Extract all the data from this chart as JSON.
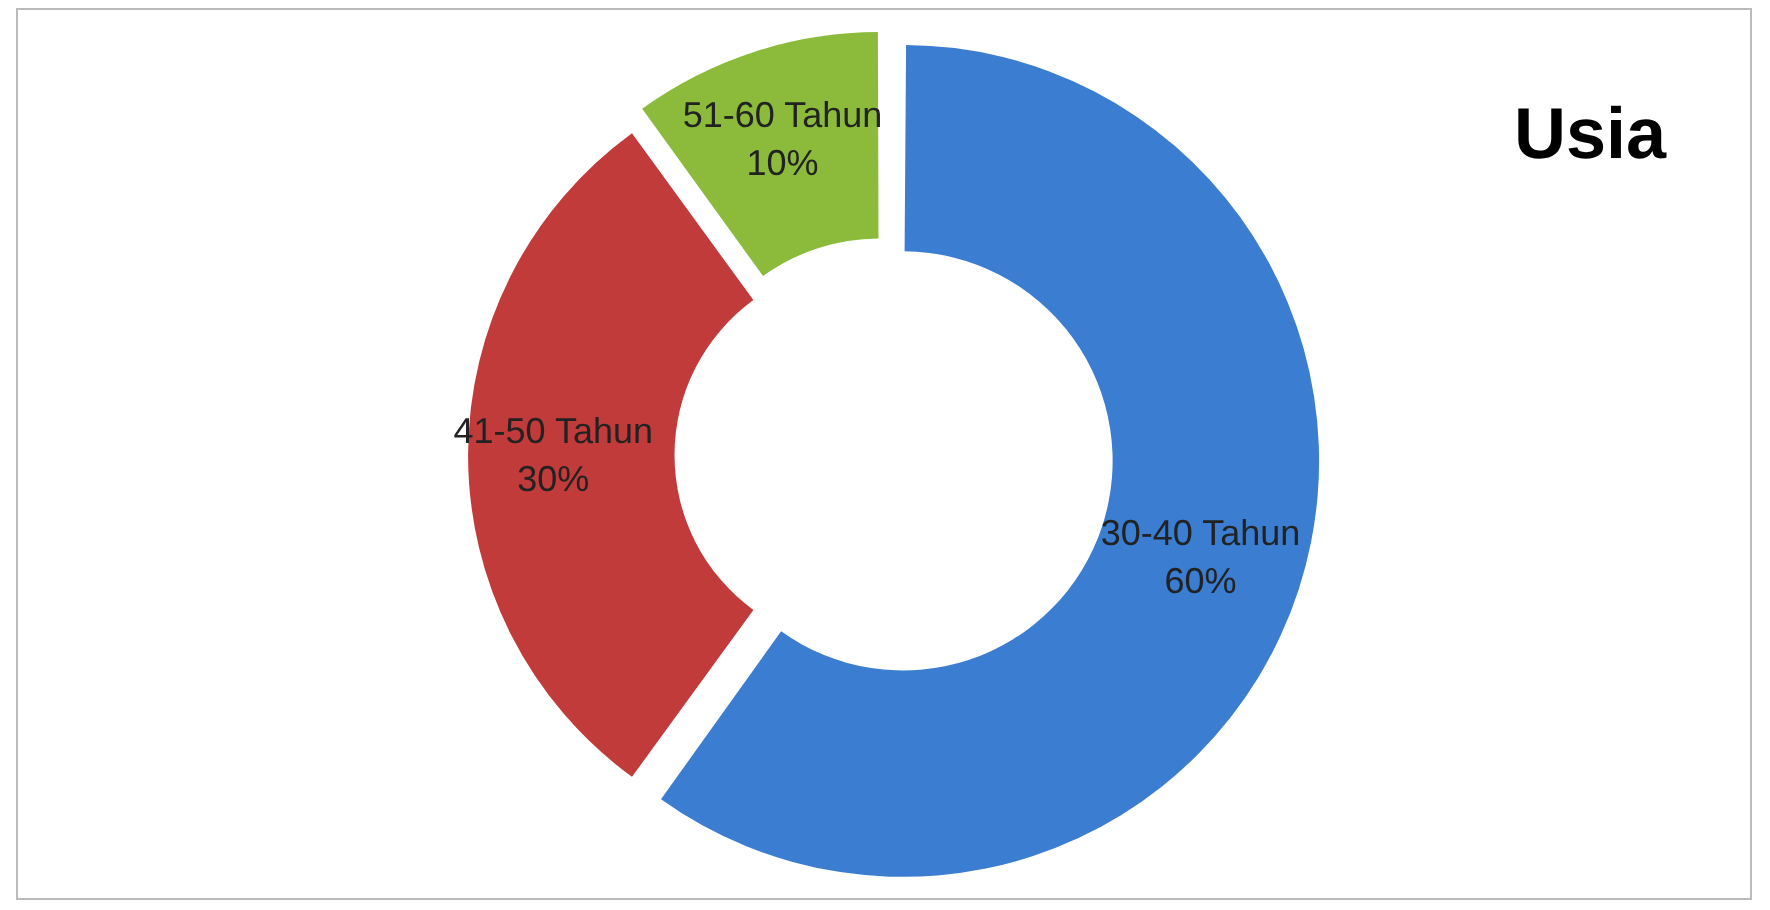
{
  "chart_data": {
    "type": "donut",
    "title": "Usia",
    "categories": [
      "30-40 Tahun",
      "41-50 Tahun",
      "51-60 Tahun"
    ],
    "values": [
      60,
      30,
      10
    ],
    "colors": [
      "#3b7dd0",
      "#c23b3b",
      "#8cbb3c"
    ],
    "value_labels": [
      "60%",
      "30%",
      "10%"
    ],
    "legend": false
  }
}
